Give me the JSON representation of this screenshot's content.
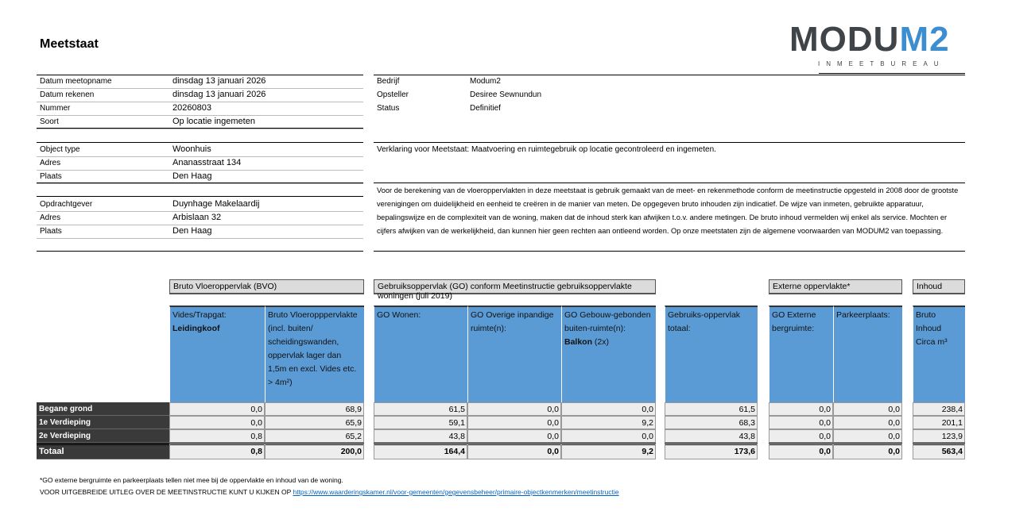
{
  "title": "Meetstaat",
  "logo": {
    "text_main": "MODU",
    "text_accent": "M2",
    "subtitle": "INMEETBUREAU",
    "colors": {
      "dark": "#3f4448",
      "accent": "#3d8ed0"
    }
  },
  "info_left": [
    [
      {
        "label": "Datum meetopname",
        "value": "dinsdag 13 januari 2026"
      },
      {
        "label": "Datum rekenen",
        "value": "dinsdag 13 januari 2026"
      },
      {
        "label": "Nummer",
        "value": "20260803"
      },
      {
        "label": "Soort",
        "value": "Op locatie ingemeten"
      }
    ],
    [
      {
        "label": "Object type",
        "value": "Woonhuis"
      },
      {
        "label": "Adres",
        "value": "Ananasstraat 134"
      },
      {
        "label": "Plaats",
        "value": "Den Haag"
      }
    ],
    [
      {
        "label": "Opdrachtgever",
        "value": "Duynhage Makelaardij"
      },
      {
        "label": "Adres",
        "value": "Arbislaan 32"
      },
      {
        "label": "Plaats",
        "value": "Den Haag"
      }
    ]
  ],
  "info_right": [
    {
      "label": "Bedrijf",
      "value": "Modum2"
    },
    {
      "label": "Opsteller",
      "value": "Desiree Sewnundun"
    },
    {
      "label": "Status",
      "value": "Definitief"
    }
  ],
  "verklaring": "Verklaring voor Meetstaat: Maatvoering en ruimtegebruik op locatie gecontroleerd en ingemeten.",
  "disclaimer": "Voor de berekening van de vloeroppervlakten in deze meetstaat is gebruik gemaakt van de meet- en rekenmethode conform de meetinstructie opgesteld in 2008 door de grootste verenigingen om duidelijkheid en eenheid te creëren in de manier van meten. De opgegeven bruto inhouden zijn indicatief. De wijze van inmeten, gebruikte apparatuur, bepalingswijze en de complexiteit van de woning, maken dat de inhoud sterk kan afwijken t.o.v. andere metingen. De bruto inhoud vermelden wij enkel als service. Mochten er cijfers afwijken van de werkelijkheid, dan kunnen hier geen rechten aan ontleend worden. Op onze meetstaten zijn de algemene voorwaarden van MODUM2 van toepassing.",
  "table": {
    "groups": [
      "Bruto Vloeroppervlak (BVO)",
      "Gebruiksoppervlak (GO) conform Meetinstructie gebruiksoppervlakte woningen (juli 2019)",
      "Externe oppervlakte*",
      "Inhoud"
    ],
    "headers": [
      {
        "text": "Vides/Trapgat:",
        "bold": "Leidingkoof"
      },
      {
        "text": "Bruto Vloeropppervlakte (incl. buiten/ scheidingswanden, oppervlak lager dan 1,5m en excl. Vides etc. > 4m²)"
      },
      {
        "text": "GO Wonen:"
      },
      {
        "text": "GO Overige inpandige ruimte(n):"
      },
      {
        "text": "GO Gebouw-gebonden buiten-ruimte(n):",
        "bold": "Balkon",
        "suffix": " (2x)"
      },
      {
        "text": "Gebruiks-oppervlak totaal:"
      },
      {
        "text": "GO Externe bergruimte:"
      },
      {
        "text": "Parkeerplaats:"
      },
      {
        "text": "Bruto Inhoud Circa m³"
      }
    ],
    "rows": [
      {
        "label": "Begane grond",
        "values": [
          "0,0",
          "68,9",
          "61,5",
          "0,0",
          "0,0",
          "61,5",
          "0,0",
          "0,0",
          "238,4"
        ]
      },
      {
        "label": "1e Verdieping",
        "values": [
          "0,0",
          "65,9",
          "59,1",
          "0,0",
          "9,2",
          "68,3",
          "0,0",
          "0,0",
          "201,1"
        ]
      },
      {
        "label": "2e Verdieping",
        "values": [
          "0,8",
          "65,2",
          "43,8",
          "0,0",
          "0,0",
          "43,8",
          "0,0",
          "0,0",
          "123,9"
        ]
      }
    ],
    "total": {
      "label": "Totaal",
      "values": [
        "0,8",
        "200,0",
        "164,4",
        "0,0",
        "9,2",
        "173,6",
        "0,0",
        "0,0",
        "563,4"
      ]
    },
    "colors": {
      "header": "#5b9bd5",
      "label_bg": "#3a3a3a",
      "group_bg": "#dcdcdc",
      "cell_bg": "#ededed"
    }
  },
  "footnote": "*GO externe bergruimte en parkeerplaats tellen niet mee bij de oppervlakte en inhoud van de woning.",
  "link_intro": "VOOR UITGEBREIDE UITLEG OVER DE MEETINSTRUCTIE KUNT U KIJKEN OP ",
  "link": "https://www.waarderingskamer.nl/voor-gemeenten/gegevensbeheer/primaire-objectkenmerken/meetinstructie"
}
